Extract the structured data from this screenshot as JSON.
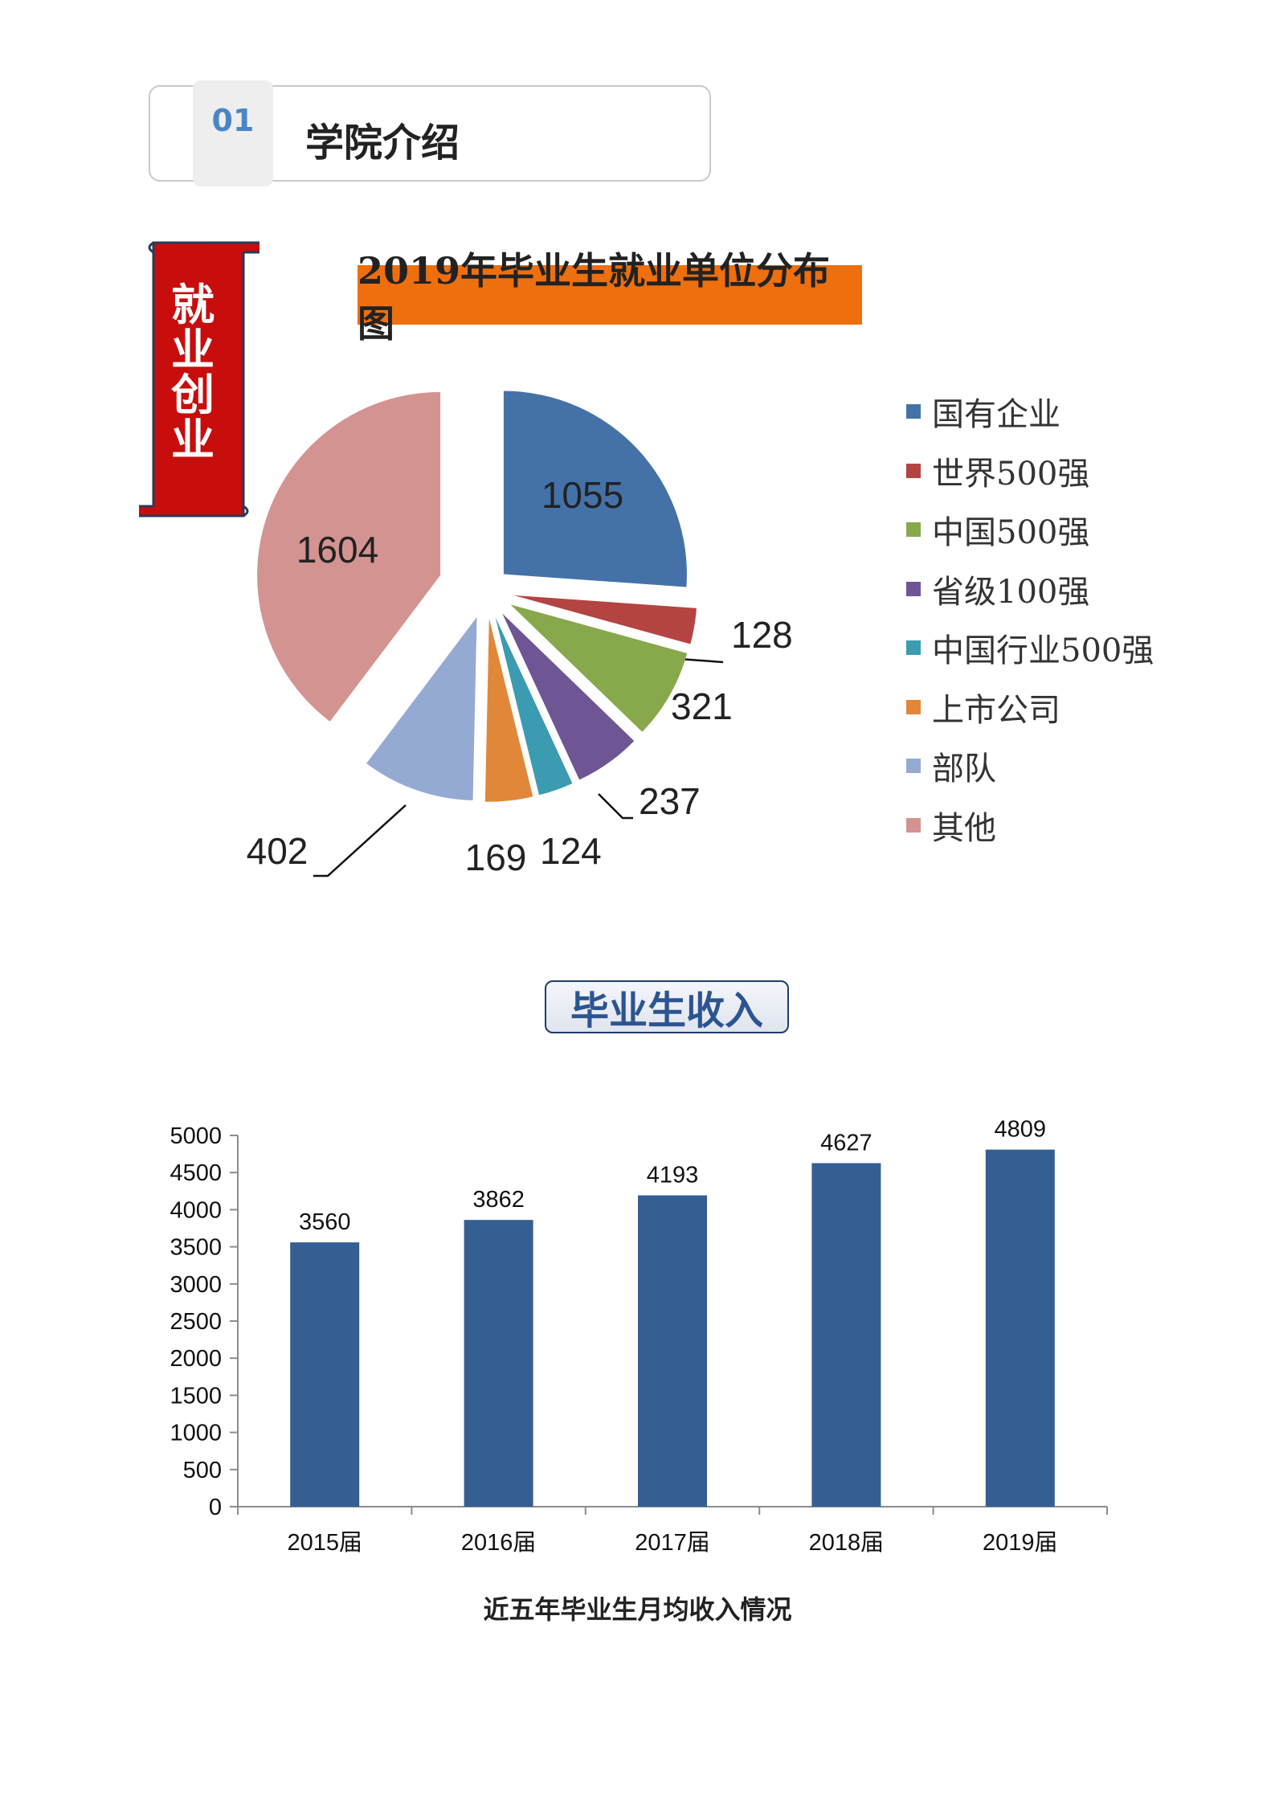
{
  "section": {
    "number": "01",
    "title": "学院介绍"
  },
  "banner": {
    "text": "就业创业"
  },
  "pie": {
    "title": "2019年毕业生就业单位分布图"
  },
  "income": {
    "title": "毕业生收入",
    "caption": "近五年毕业生月均收入情况"
  },
  "chart_data": [
    {
      "type": "pie",
      "title": "2019年毕业生就业单位分布图",
      "categories": [
        "国有企业",
        "世界500强",
        "中国500强",
        "省级100强",
        "中国行业500强",
        "上市公司",
        "部队",
        "其他"
      ],
      "values": [
        1055,
        128,
        321,
        237,
        124,
        169,
        402,
        1604
      ],
      "colors": [
        "#4472a8",
        "#b34442",
        "#87a84b",
        "#6e5593",
        "#3b9bb0",
        "#e0873a",
        "#95aad2",
        "#d39391"
      ],
      "legend": "right"
    },
    {
      "type": "bar",
      "categories": [
        "2015届",
        "2016届",
        "2017届",
        "2018届",
        "2019届"
      ],
      "values": [
        3560,
        3862,
        4193,
        4627,
        4809
      ],
      "ylim": [
        0,
        5000
      ],
      "yticks": [
        0,
        500,
        1000,
        1500,
        2000,
        2500,
        3000,
        3500,
        4000,
        4500,
        5000
      ],
      "color": "#355f93",
      "title": "近五年毕业生月均收入情况",
      "grid": false
    }
  ]
}
